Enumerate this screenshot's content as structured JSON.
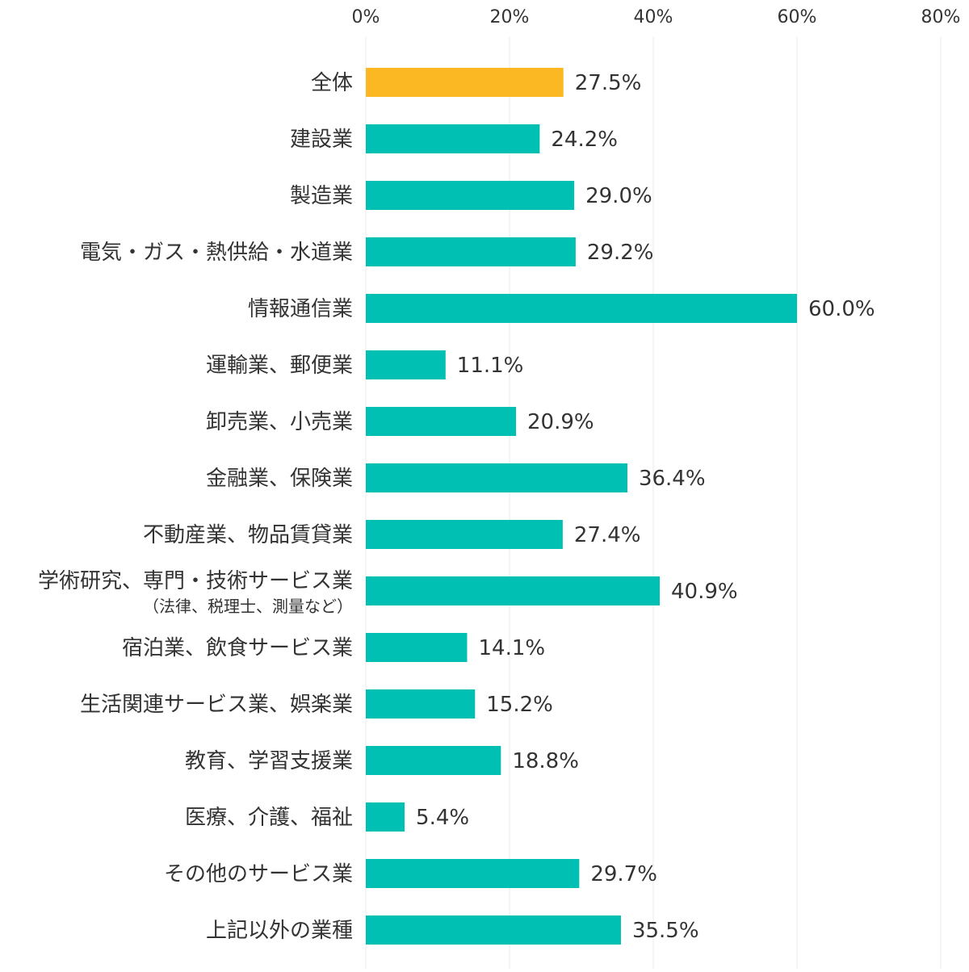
{
  "chart_data": {
    "type": "bar",
    "orientation": "horizontal",
    "xlim": [
      0,
      80
    ],
    "x_ticks": [
      "0%",
      "20%",
      "40%",
      "60%",
      "80%"
    ],
    "x_tick_values": [
      0,
      20,
      40,
      60,
      80
    ],
    "grid": true,
    "categories": [
      {
        "label": "全体",
        "value": 27.5,
        "value_label": "27.5%",
        "highlight": true
      },
      {
        "label": "建設業",
        "value": 24.2,
        "value_label": "24.2%"
      },
      {
        "label": "製造業",
        "value": 29.0,
        "value_label": "29.0%"
      },
      {
        "label": "電気・ガス・熱供給・水道業",
        "value": 29.2,
        "value_label": "29.2%"
      },
      {
        "label": "情報通信業",
        "value": 60.0,
        "value_label": "60.0%"
      },
      {
        "label": "運輸業、郵便業",
        "value": 11.1,
        "value_label": "11.1%"
      },
      {
        "label": "卸売業、小売業",
        "value": 20.9,
        "value_label": "20.9%"
      },
      {
        "label": "金融業、保険業",
        "value": 36.4,
        "value_label": "36.4%"
      },
      {
        "label": "不動産業、物品賃貸業",
        "value": 27.4,
        "value_label": "27.4%"
      },
      {
        "label": "学術研究、専門・技術サービス業",
        "sublabel": "（法律、税理士、測量など）",
        "value": 40.9,
        "value_label": "40.9%"
      },
      {
        "label": "宿泊業、飲食サービス業",
        "value": 14.1,
        "value_label": "14.1%"
      },
      {
        "label": "生活関連サービス業、娯楽業",
        "value": 15.2,
        "value_label": "15.2%"
      },
      {
        "label": "教育、学習支援業",
        "value": 18.8,
        "value_label": "18.8%"
      },
      {
        "label": "医療、介護、福祉",
        "value": 5.4,
        "value_label": "5.4%"
      },
      {
        "label": "その他のサービス業",
        "value": 29.7,
        "value_label": "29.7%"
      },
      {
        "label": "上記以外の業種",
        "value": 35.5,
        "value_label": "35.5%"
      }
    ],
    "colors": {
      "highlight": "#FBB822",
      "default": "#00BFB3",
      "grid": "#EBEBEB",
      "text": "#333333"
    }
  }
}
